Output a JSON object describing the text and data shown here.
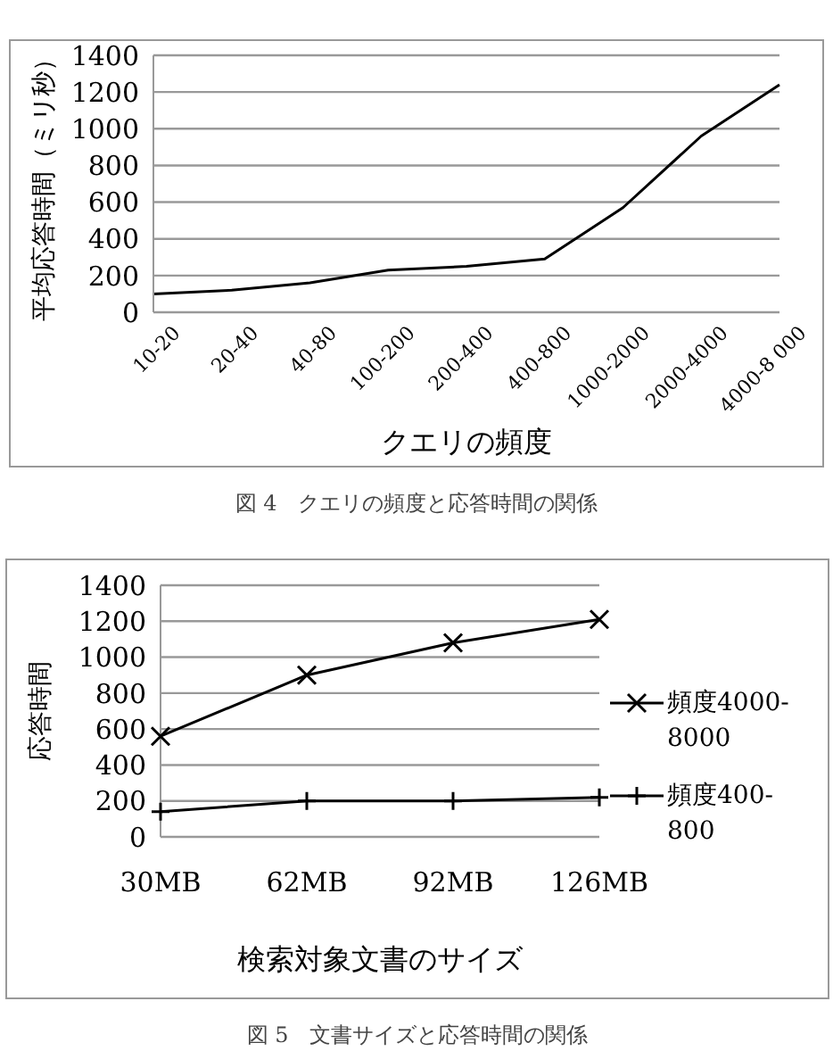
{
  "chart_data": [
    {
      "type": "line",
      "xlabel": "クエリの頻度",
      "ylabel": "平均応答時間（ミリ秒）",
      "categories": [
        "10-20",
        "20-40",
        "40-80",
        "100-200",
        "200-400",
        "400-800",
        "1000-2000",
        "2000-4000",
        "4000-8 000"
      ],
      "series": [
        {
          "color": "#000000",
          "values": [
            100,
            120,
            160,
            230,
            250,
            290,
            570,
            960,
            1240
          ]
        }
      ],
      "ylim": [
        0,
        1400
      ],
      "yticks": [
        0,
        200,
        400,
        600,
        800,
        1000,
        1200,
        1400
      ],
      "grid": "y",
      "legend": false,
      "annotations": [
        "図 4　クエリの頻度と応答時間の関係"
      ]
    },
    {
      "type": "line",
      "xlabel": "検索対象文書のサイズ",
      "ylabel": "応答時間",
      "categories": [
        "30MB",
        "62MB",
        "92MB",
        "126MB"
      ],
      "series": [
        {
          "name": "頻度4000-8000",
          "color": "#000000",
          "marker": "cross",
          "values": [
            560,
            900,
            1080,
            1210
          ]
        },
        {
          "name": "頻度400-800",
          "color": "#000000",
          "marker": "plus",
          "values": [
            140,
            200,
            200,
            220
          ]
        }
      ],
      "ylim": [
        0,
        1400
      ],
      "yticks": [
        0,
        200,
        400,
        600,
        800,
        1000,
        1200,
        1400
      ],
      "grid": "y",
      "legend": "right",
      "annotations": [
        "図 5　文書サイズと応答時間の関係"
      ]
    }
  ]
}
